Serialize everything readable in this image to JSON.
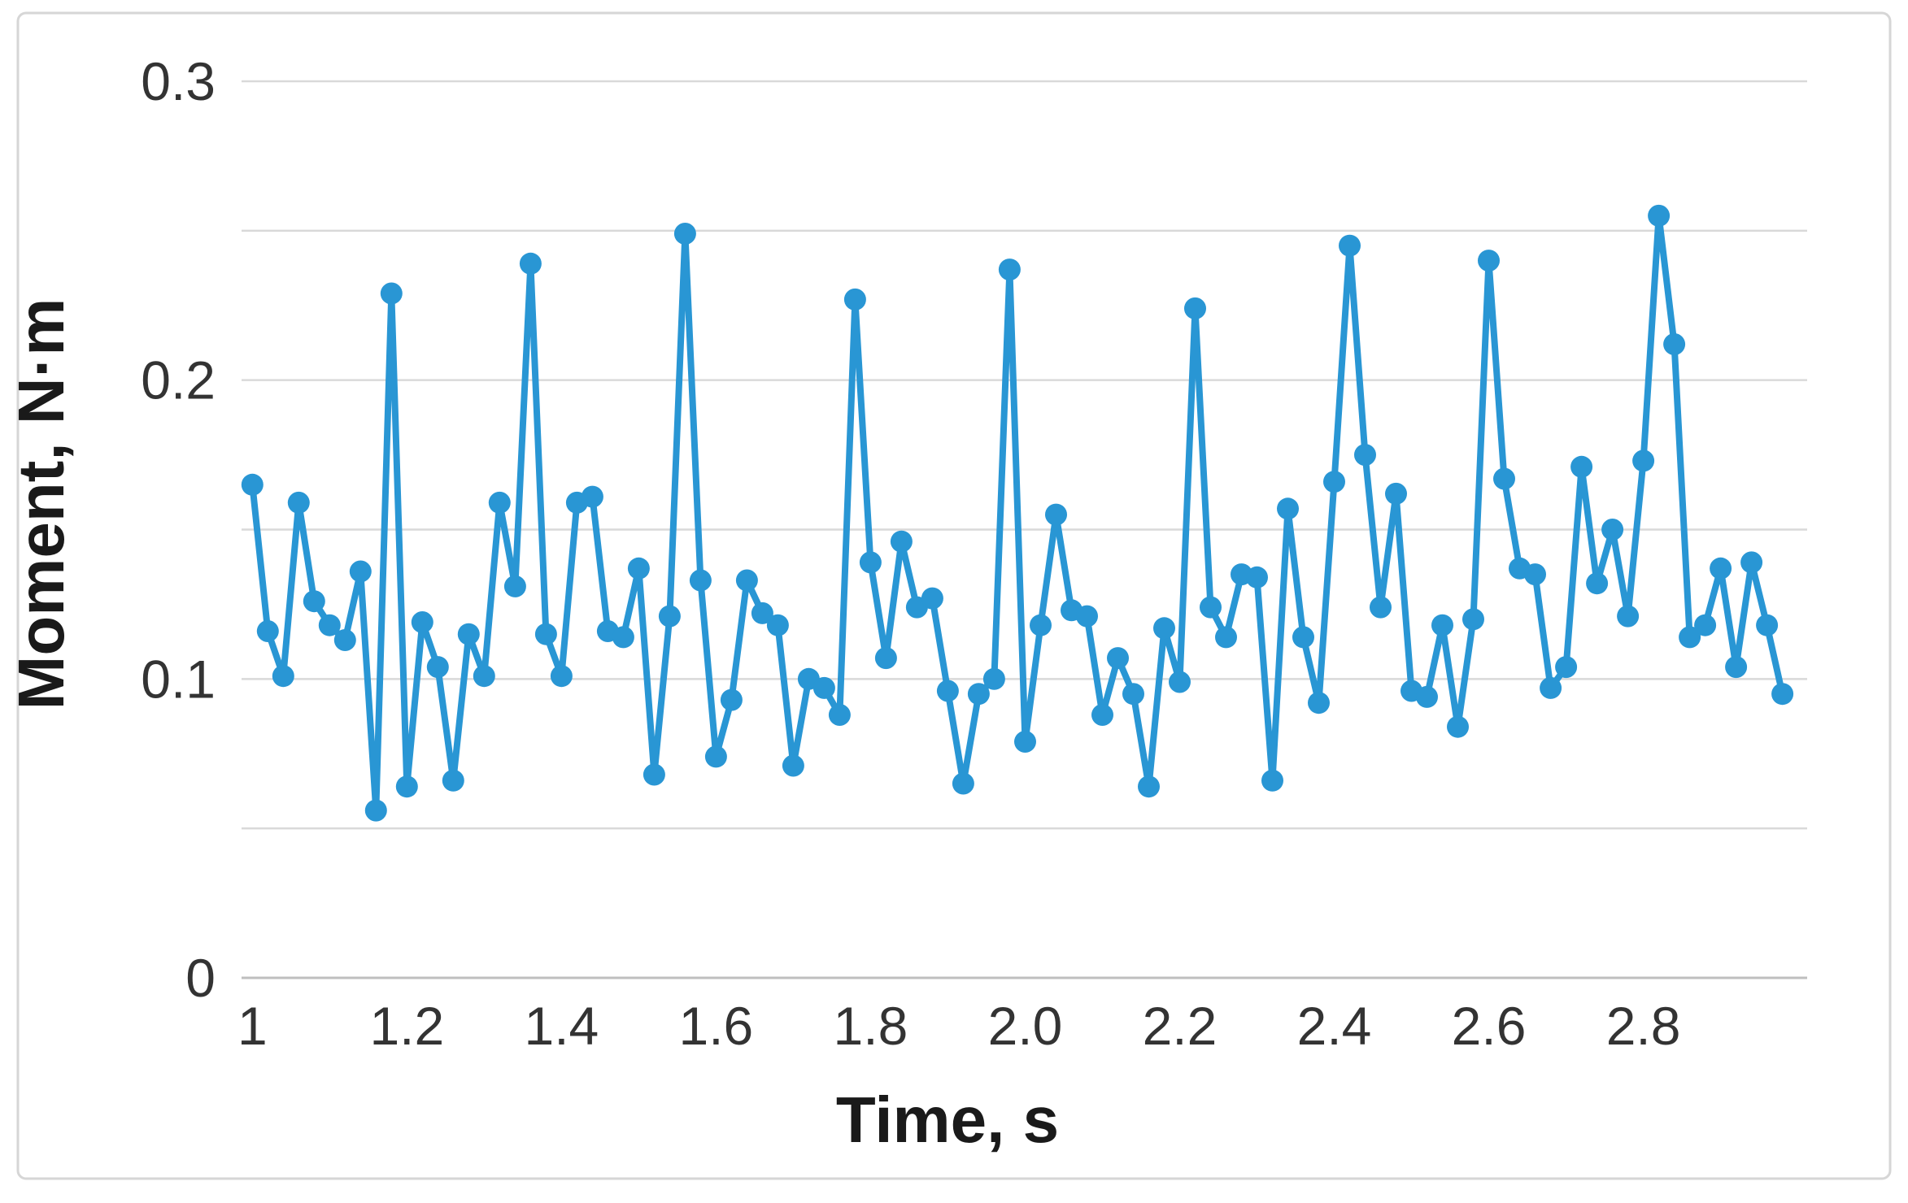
{
  "figure": {
    "background": "#ffffff",
    "border_color": "#d6d6d6"
  },
  "colors": {
    "series_blue": "#2996D4",
    "gridline": "#d9d9d9",
    "axis_line": "#bfbfbf",
    "tick_text": "#333333",
    "title_text": "#1a1a1a"
  },
  "chart_data": {
    "type": "line",
    "title": "",
    "xlabel": "Time, s",
    "ylabel": "Moment, N·m",
    "xlim": [
      0.986,
      3.012
    ],
    "ylim": [
      0,
      0.3
    ],
    "grid": true,
    "legend": false,
    "x_ticks": [
      {
        "value": 1.0,
        "label": "1"
      },
      {
        "value": 1.2,
        "label": "1.2"
      },
      {
        "value": 1.4,
        "label": "1.4"
      },
      {
        "value": 1.6,
        "label": "1.6"
      },
      {
        "value": 1.8,
        "label": "1.8"
      },
      {
        "value": 2.0,
        "label": "2.0"
      },
      {
        "value": 2.2,
        "label": "2.2"
      },
      {
        "value": 2.4,
        "label": "2.4"
      },
      {
        "value": 2.6,
        "label": "2.6"
      },
      {
        "value": 2.8,
        "label": "2.8"
      }
    ],
    "y_ticks": [
      {
        "value": 0.3,
        "label": "0.3"
      },
      {
        "value": 0.2,
        "label": "0.2"
      },
      {
        "value": 0.1,
        "label": "0.1"
      },
      {
        "value": 0.0,
        "label": "0"
      }
    ],
    "y_gridline_values": [
      0.0,
      0.05,
      0.1,
      0.15,
      0.2,
      0.25,
      0.3
    ],
    "series": [
      {
        "name": "Moment",
        "color": "#2996D4",
        "marker": "circle",
        "points": [
          [
            1.0,
            0.165
          ],
          [
            1.02,
            0.116
          ],
          [
            1.04,
            0.101
          ],
          [
            1.06,
            0.159
          ],
          [
            1.08,
            0.126
          ],
          [
            1.1,
            0.118
          ],
          [
            1.12,
            0.113
          ],
          [
            1.14,
            0.136
          ],
          [
            1.16,
            0.056
          ],
          [
            1.18,
            0.229
          ],
          [
            1.2,
            0.064
          ],
          [
            1.22,
            0.119
          ],
          [
            1.24,
            0.104
          ],
          [
            1.26,
            0.066
          ],
          [
            1.28,
            0.115
          ],
          [
            1.3,
            0.101
          ],
          [
            1.32,
            0.159
          ],
          [
            1.34,
            0.131
          ],
          [
            1.36,
            0.239
          ],
          [
            1.38,
            0.115
          ],
          [
            1.4,
            0.101
          ],
          [
            1.42,
            0.159
          ],
          [
            1.44,
            0.161
          ],
          [
            1.46,
            0.116
          ],
          [
            1.48,
            0.114
          ],
          [
            1.5,
            0.137
          ],
          [
            1.52,
            0.068
          ],
          [
            1.54,
            0.121
          ],
          [
            1.56,
            0.249
          ],
          [
            1.58,
            0.133
          ],
          [
            1.6,
            0.074
          ],
          [
            1.62,
            0.093
          ],
          [
            1.64,
            0.133
          ],
          [
            1.66,
            0.122
          ],
          [
            1.68,
            0.118
          ],
          [
            1.7,
            0.071
          ],
          [
            1.72,
            0.1
          ],
          [
            1.74,
            0.097
          ],
          [
            1.76,
            0.088
          ],
          [
            1.78,
            0.227
          ],
          [
            1.8,
            0.139
          ],
          [
            1.82,
            0.107
          ],
          [
            1.84,
            0.146
          ],
          [
            1.86,
            0.124
          ],
          [
            1.88,
            0.127
          ],
          [
            1.9,
            0.096
          ],
          [
            1.92,
            0.065
          ],
          [
            1.94,
            0.095
          ],
          [
            1.96,
            0.1
          ],
          [
            1.98,
            0.237
          ],
          [
            2.0,
            0.079
          ],
          [
            2.02,
            0.118
          ],
          [
            2.04,
            0.155
          ],
          [
            2.06,
            0.123
          ],
          [
            2.08,
            0.121
          ],
          [
            2.1,
            0.088
          ],
          [
            2.12,
            0.107
          ],
          [
            2.14,
            0.095
          ],
          [
            2.16,
            0.064
          ],
          [
            2.18,
            0.117
          ],
          [
            2.2,
            0.099
          ],
          [
            2.22,
            0.224
          ],
          [
            2.24,
            0.124
          ],
          [
            2.26,
            0.114
          ],
          [
            2.28,
            0.135
          ],
          [
            2.3,
            0.134
          ],
          [
            2.32,
            0.066
          ],
          [
            2.34,
            0.157
          ],
          [
            2.36,
            0.114
          ],
          [
            2.38,
            0.092
          ],
          [
            2.4,
            0.166
          ],
          [
            2.42,
            0.245
          ],
          [
            2.44,
            0.175
          ],
          [
            2.46,
            0.124
          ],
          [
            2.48,
            0.162
          ],
          [
            2.5,
            0.096
          ],
          [
            2.52,
            0.094
          ],
          [
            2.54,
            0.118
          ],
          [
            2.56,
            0.084
          ],
          [
            2.58,
            0.12
          ],
          [
            2.6,
            0.24
          ],
          [
            2.62,
            0.167
          ],
          [
            2.64,
            0.137
          ],
          [
            2.66,
            0.135
          ],
          [
            2.68,
            0.097
          ],
          [
            2.7,
            0.104
          ],
          [
            2.72,
            0.171
          ],
          [
            2.74,
            0.132
          ],
          [
            2.76,
            0.15
          ],
          [
            2.78,
            0.121
          ],
          [
            2.8,
            0.173
          ],
          [
            2.82,
            0.255
          ],
          [
            2.84,
            0.212
          ],
          [
            2.86,
            0.114
          ],
          [
            2.88,
            0.118
          ],
          [
            2.9,
            0.137
          ],
          [
            2.92,
            0.104
          ],
          [
            2.94,
            0.139
          ],
          [
            2.96,
            0.118
          ],
          [
            2.98,
            0.095
          ]
        ]
      }
    ]
  }
}
